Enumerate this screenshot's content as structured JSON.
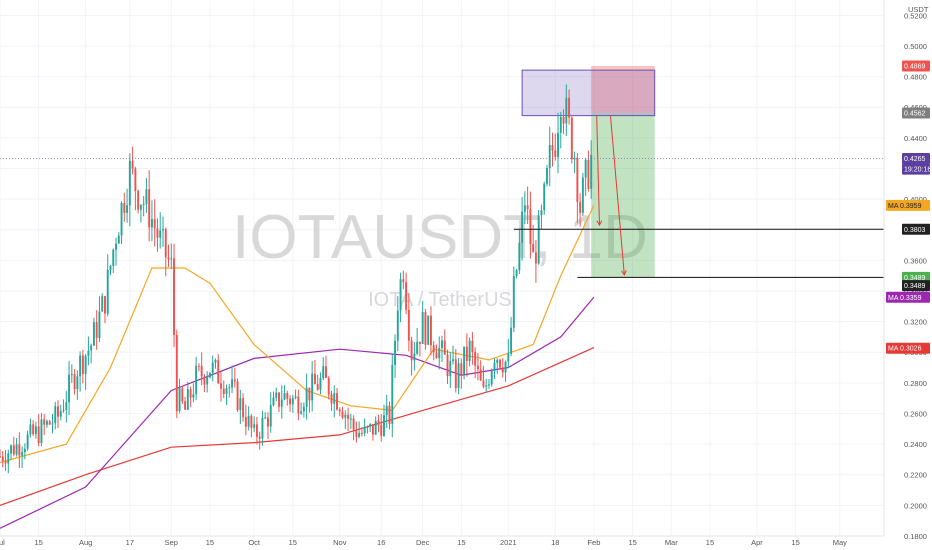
{
  "watermark": {
    "symbol": "IOTAUSDT, 1D",
    "subtitle": "IOTA / TetherUS"
  },
  "currency": "USDT",
  "chart_data": {
    "type": "candlestick",
    "title": "IOTAUSDT, 1D",
    "subtitle": "IOTA / TetherUS",
    "y_axis": {
      "position": "right",
      "range": [
        0.18,
        0.53
      ],
      "ticks": [
        "0.1800",
        "0.2000",
        "0.2200",
        "0.2400",
        "0.2600",
        "0.2800",
        "0.3000",
        "0.3200",
        "0.3400",
        "0.3600",
        "0.3800",
        "0.4000",
        "0.4200",
        "0.4400",
        "0.4600",
        "0.4800",
        "0.5000",
        "0.5200"
      ]
    },
    "x_axis": {
      "range": [
        "2020-07-01",
        "2021-05-17"
      ],
      "ticks": [
        {
          "label": "Jul",
          "date": "2020-07-01"
        },
        {
          "label": "15",
          "date": "2020-07-15"
        },
        {
          "label": "Aug",
          "date": "2020-08-01"
        },
        {
          "label": "17",
          "date": "2020-08-17"
        },
        {
          "label": "Sep",
          "date": "2020-09-01"
        },
        {
          "label": "15",
          "date": "2020-09-15"
        },
        {
          "label": "Oct",
          "date": "2020-10-01"
        },
        {
          "label": "15",
          "date": "2020-10-15"
        },
        {
          "label": "Nov",
          "date": "2020-11-01"
        },
        {
          "label": "16",
          "date": "2020-11-16"
        },
        {
          "label": "Dec",
          "date": "2020-12-01"
        },
        {
          "label": "15",
          "date": "2020-12-15"
        },
        {
          "label": "2021",
          "date": "2021-01-01"
        },
        {
          "label": "18",
          "date": "2021-01-18"
        },
        {
          "label": "Feb",
          "date": "2021-02-01"
        },
        {
          "label": "15",
          "date": "2021-02-15"
        },
        {
          "label": "Mar",
          "date": "2021-03-01"
        },
        {
          "label": "15",
          "date": "2021-03-15"
        },
        {
          "label": "Apr",
          "date": "2021-04-01"
        },
        {
          "label": "15",
          "date": "2021-04-15"
        },
        {
          "label": "May",
          "date": "2021-05-01"
        }
      ]
    },
    "price_series": [
      {
        "date": "2020-07-01",
        "close": 0.232
      },
      {
        "date": "2020-07-08",
        "close": 0.24
      },
      {
        "date": "2020-07-15",
        "close": 0.248
      },
      {
        "date": "2020-07-22",
        "close": 0.258
      },
      {
        "date": "2020-07-29",
        "close": 0.29
      },
      {
        "date": "2020-08-03",
        "close": 0.305
      },
      {
        "date": "2020-08-08",
        "close": 0.335
      },
      {
        "date": "2020-08-12",
        "close": 0.378
      },
      {
        "date": "2020-08-17",
        "close": 0.418
      },
      {
        "date": "2020-08-20",
        "close": 0.405
      },
      {
        "date": "2020-08-24",
        "close": 0.392
      },
      {
        "date": "2020-08-28",
        "close": 0.372
      },
      {
        "date": "2020-09-01",
        "close": 0.355
      },
      {
        "date": "2020-09-03",
        "close": 0.27
      },
      {
        "date": "2020-09-06",
        "close": 0.262
      },
      {
        "date": "2020-09-10",
        "close": 0.283
      },
      {
        "date": "2020-09-15",
        "close": 0.29
      },
      {
        "date": "2020-09-20",
        "close": 0.282
      },
      {
        "date": "2020-09-25",
        "close": 0.27
      },
      {
        "date": "2020-10-01",
        "close": 0.245
      },
      {
        "date": "2020-10-06",
        "close": 0.258
      },
      {
        "date": "2020-10-11",
        "close": 0.272
      },
      {
        "date": "2020-10-16",
        "close": 0.268
      },
      {
        "date": "2020-10-21",
        "close": 0.275
      },
      {
        "date": "2020-10-26",
        "close": 0.282
      },
      {
        "date": "2020-11-01",
        "close": 0.268
      },
      {
        "date": "2020-11-06",
        "close": 0.25
      },
      {
        "date": "2020-11-10",
        "close": 0.246
      },
      {
        "date": "2020-11-16",
        "close": 0.254
      },
      {
        "date": "2020-11-19",
        "close": 0.258
      },
      {
        "date": "2020-11-22",
        "close": 0.335
      },
      {
        "date": "2020-11-24",
        "close": 0.356
      },
      {
        "date": "2020-11-27",
        "close": 0.3
      },
      {
        "date": "2020-12-01",
        "close": 0.318
      },
      {
        "date": "2020-12-05",
        "close": 0.308
      },
      {
        "date": "2020-12-09",
        "close": 0.295
      },
      {
        "date": "2020-12-13",
        "close": 0.283
      },
      {
        "date": "2020-12-18",
        "close": 0.302
      },
      {
        "date": "2020-12-23",
        "close": 0.272
      },
      {
        "date": "2020-12-27",
        "close": 0.3
      },
      {
        "date": "2021-01-01",
        "close": 0.292
      },
      {
        "date": "2021-01-03",
        "close": 0.34
      },
      {
        "date": "2021-01-05",
        "close": 0.368
      },
      {
        "date": "2021-01-07",
        "close": 0.4
      },
      {
        "date": "2021-01-10",
        "close": 0.36
      },
      {
        "date": "2021-01-13",
        "close": 0.385
      },
      {
        "date": "2021-01-16",
        "close": 0.425
      },
      {
        "date": "2021-01-18",
        "close": 0.44
      },
      {
        "date": "2021-01-20",
        "close": 0.47
      },
      {
        "date": "2021-01-23",
        "close": 0.445
      },
      {
        "date": "2021-01-25",
        "close": 0.43
      },
      {
        "date": "2021-01-27",
        "close": 0.395
      },
      {
        "date": "2021-01-29",
        "close": 0.412
      },
      {
        "date": "2021-01-31",
        "close": 0.4265
      }
    ],
    "moving_averages": [
      {
        "name": "MA",
        "value_label": "0.3026",
        "color": "#e53935",
        "points": [
          {
            "date": "2020-07-01",
            "value": 0.2
          },
          {
            "date": "2020-08-01",
            "value": 0.22
          },
          {
            "date": "2020-09-01",
            "value": 0.238
          },
          {
            "date": "2020-10-01",
            "value": 0.241
          },
          {
            "date": "2020-11-01",
            "value": 0.246
          },
          {
            "date": "2020-12-01",
            "value": 0.262
          },
          {
            "date": "2021-01-01",
            "value": 0.278
          },
          {
            "date": "2021-02-01",
            "value": 0.303
          }
        ]
      },
      {
        "name": "MA",
        "value_label": "0.3359",
        "color": "#9c27b0",
        "points": [
          {
            "date": "2020-07-01",
            "value": 0.185
          },
          {
            "date": "2020-08-01",
            "value": 0.212
          },
          {
            "date": "2020-09-01",
            "value": 0.275
          },
          {
            "date": "2020-10-01",
            "value": 0.296
          },
          {
            "date": "2020-11-01",
            "value": 0.302
          },
          {
            "date": "2020-11-25",
            "value": 0.298
          },
          {
            "date": "2020-12-15",
            "value": 0.285
          },
          {
            "date": "2021-01-01",
            "value": 0.29
          },
          {
            "date": "2021-01-20",
            "value": 0.31
          },
          {
            "date": "2021-02-01",
            "value": 0.336
          }
        ]
      },
      {
        "name": "MA",
        "value_label": "0.3959",
        "color": "#f5a623",
        "points": [
          {
            "date": "2020-07-01",
            "value": 0.228
          },
          {
            "date": "2020-07-25",
            "value": 0.24
          },
          {
            "date": "2020-08-10",
            "value": 0.29
          },
          {
            "date": "2020-08-25",
            "value": 0.355
          },
          {
            "date": "2020-09-06",
            "value": 0.355
          },
          {
            "date": "2020-09-15",
            "value": 0.345
          },
          {
            "date": "2020-10-01",
            "value": 0.305
          },
          {
            "date": "2020-10-20",
            "value": 0.275
          },
          {
            "date": "2020-11-05",
            "value": 0.265
          },
          {
            "date": "2020-11-20",
            "value": 0.262
          },
          {
            "date": "2020-12-05",
            "value": 0.302
          },
          {
            "date": "2020-12-25",
            "value": 0.295
          },
          {
            "date": "2021-01-10",
            "value": 0.305
          },
          {
            "date": "2021-01-20",
            "value": 0.35
          },
          {
            "date": "2021-02-01",
            "value": 0.396
          }
        ]
      }
    ],
    "zones": {
      "rectangle": {
        "from": "2021-01-06",
        "to": "2021-02-23",
        "top": 0.4842,
        "bottom": 0.4545
      },
      "risk_zone": {
        "from": "2021-01-31",
        "to": "2021-02-23",
        "top": 0.4869,
        "bottom": 0.4562
      },
      "reward_zone": {
        "from": "2021-01-31",
        "to": "2021-02-23",
        "top": 0.4562,
        "bottom": 0.3489
      }
    },
    "horizontal_lines": [
      {
        "price": 0.3803,
        "from": "2021-01-03"
      },
      {
        "price": 0.3489,
        "from": "2021-01-26"
      }
    ],
    "current_price_line": 0.4265,
    "arrows": [
      {
        "from_date": "2021-02-02",
        "from_price": 0.4542,
        "to_date": "2021-02-03",
        "to_price": 0.383
      },
      {
        "from_date": "2021-02-07",
        "from_price": 0.4542,
        "to_date": "2021-02-12",
        "to_price": 0.3505
      }
    ],
    "price_tags": [
      {
        "label": "0.4869",
        "price": 0.4869,
        "bg": "#ef5350",
        "fg": "#ffffff"
      },
      {
        "label": "0.4562",
        "price": 0.4562,
        "bg": "#808080",
        "fg": "#ffffff"
      },
      {
        "label": "0.4265",
        "price": 0.4265,
        "bg": "#5c3f9e",
        "fg": "#ffffff"
      },
      {
        "label": "19:20:16",
        "price": 0.4196,
        "bg": "#5c3f9e",
        "fg": "#ffffff"
      },
      {
        "label": "MA",
        "extra": "0.3959",
        "price": 0.3959,
        "bg": "#f5a623",
        "fg": "#222222"
      },
      {
        "label": "0.3803",
        "price": 0.3803,
        "bg": "#222222",
        "fg": "#ffffff"
      },
      {
        "label": "0.3489",
        "price": 0.3489,
        "bg": "#4caf50",
        "fg": "#ffffff"
      },
      {
        "label": "0.3489",
        "price": 0.3435,
        "bg": "#222222",
        "fg": "#ffffff"
      },
      {
        "label": "MA",
        "extra": "0.3359",
        "price": 0.3359,
        "bg": "#9c27b0",
        "fg": "#ffffff"
      },
      {
        "label": "MA",
        "extra": "0.3026",
        "price": 0.3026,
        "bg": "#e53935",
        "fg": "#ffffff"
      }
    ]
  },
  "colors": {
    "up": "#26a69a",
    "down": "#ef5350",
    "grid": "#f0f3fa",
    "current_price": "#7b61b0",
    "rect_stroke": "#6a4fb8"
  }
}
